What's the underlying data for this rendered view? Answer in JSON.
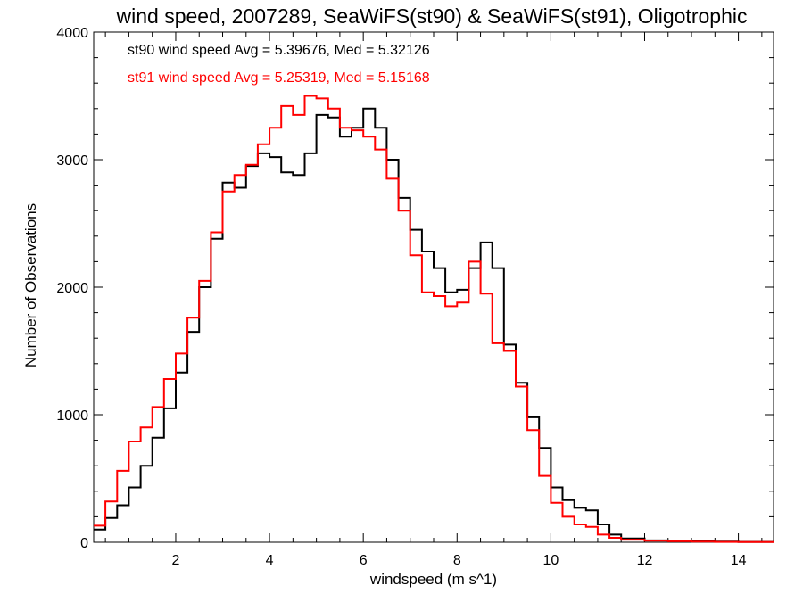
{
  "chart_data": {
    "type": "line",
    "step": true,
    "title": "wind speed, 2007289, SeaWiFS(st90) & SeaWiFS(st91), Oligotrophic",
    "xlabel": "windspeed (m s^1)",
    "ylabel": "Number of Observations",
    "xlim": [
      0.25,
      14.75
    ],
    "ylim": [
      0,
      4000
    ],
    "x_ticks": [
      2,
      4,
      6,
      8,
      10,
      12,
      14
    ],
    "y_ticks": [
      0,
      1000,
      2000,
      3000,
      4000
    ],
    "legend_position": "top-left",
    "series": [
      {
        "name": "st90",
        "label": "st90 wind speed Avg = 5.39676, Med = 5.32126",
        "color": "#000000",
        "x": [
          0.25,
          0.5,
          0.75,
          1.0,
          1.25,
          1.5,
          1.75,
          2.0,
          2.25,
          2.5,
          2.75,
          3.0,
          3.25,
          3.5,
          3.75,
          4.0,
          4.25,
          4.5,
          4.75,
          5.0,
          5.25,
          5.5,
          5.75,
          6.0,
          6.25,
          6.5,
          6.75,
          7.0,
          7.25,
          7.5,
          7.75,
          8.0,
          8.25,
          8.5,
          8.75,
          9.0,
          9.25,
          9.5,
          9.75,
          10.0,
          10.25,
          10.5,
          10.75,
          11.0,
          11.25,
          11.5,
          12.0,
          12.5,
          13.0,
          13.5,
          14.0,
          14.75
        ],
        "y": [
          100,
          190,
          290,
          430,
          600,
          820,
          1050,
          1330,
          1650,
          2000,
          2380,
          2820,
          2780,
          2950,
          3050,
          3020,
          2900,
          2880,
          3050,
          3350,
          3330,
          3180,
          3250,
          3400,
          3250,
          3000,
          2700,
          2450,
          2280,
          2150,
          1960,
          1980,
          2150,
          2350,
          2150,
          1550,
          1250,
          980,
          740,
          430,
          330,
          270,
          250,
          140,
          60,
          30,
          15,
          10,
          8,
          5,
          3,
          2
        ]
      },
      {
        "name": "st91",
        "label": "st91 wind speed Avg = 5.25319, Med = 5.15168",
        "color": "#ff0000",
        "x": [
          0.25,
          0.5,
          0.75,
          1.0,
          1.25,
          1.5,
          1.75,
          2.0,
          2.25,
          2.5,
          2.75,
          3.0,
          3.25,
          3.5,
          3.75,
          4.0,
          4.25,
          4.5,
          4.75,
          5.0,
          5.25,
          5.5,
          5.75,
          6.0,
          6.25,
          6.5,
          6.75,
          7.0,
          7.25,
          7.5,
          7.75,
          8.0,
          8.25,
          8.5,
          8.75,
          9.0,
          9.25,
          9.5,
          9.75,
          10.0,
          10.25,
          10.5,
          10.75,
          11.0,
          11.25,
          11.5,
          12.0,
          12.5,
          13.0,
          13.5,
          14.0,
          14.75
        ],
        "y": [
          130,
          320,
          560,
          790,
          900,
          1060,
          1280,
          1480,
          1760,
          2050,
          2430,
          2750,
          2880,
          2960,
          3120,
          3250,
          3420,
          3350,
          3500,
          3480,
          3400,
          3250,
          3230,
          3180,
          3080,
          2850,
          2600,
          2250,
          1960,
          1930,
          1850,
          1880,
          2200,
          1950,
          1560,
          1500,
          1220,
          880,
          520,
          310,
          200,
          140,
          120,
          60,
          35,
          20,
          12,
          8,
          5,
          3,
          2,
          1
        ]
      }
    ]
  }
}
